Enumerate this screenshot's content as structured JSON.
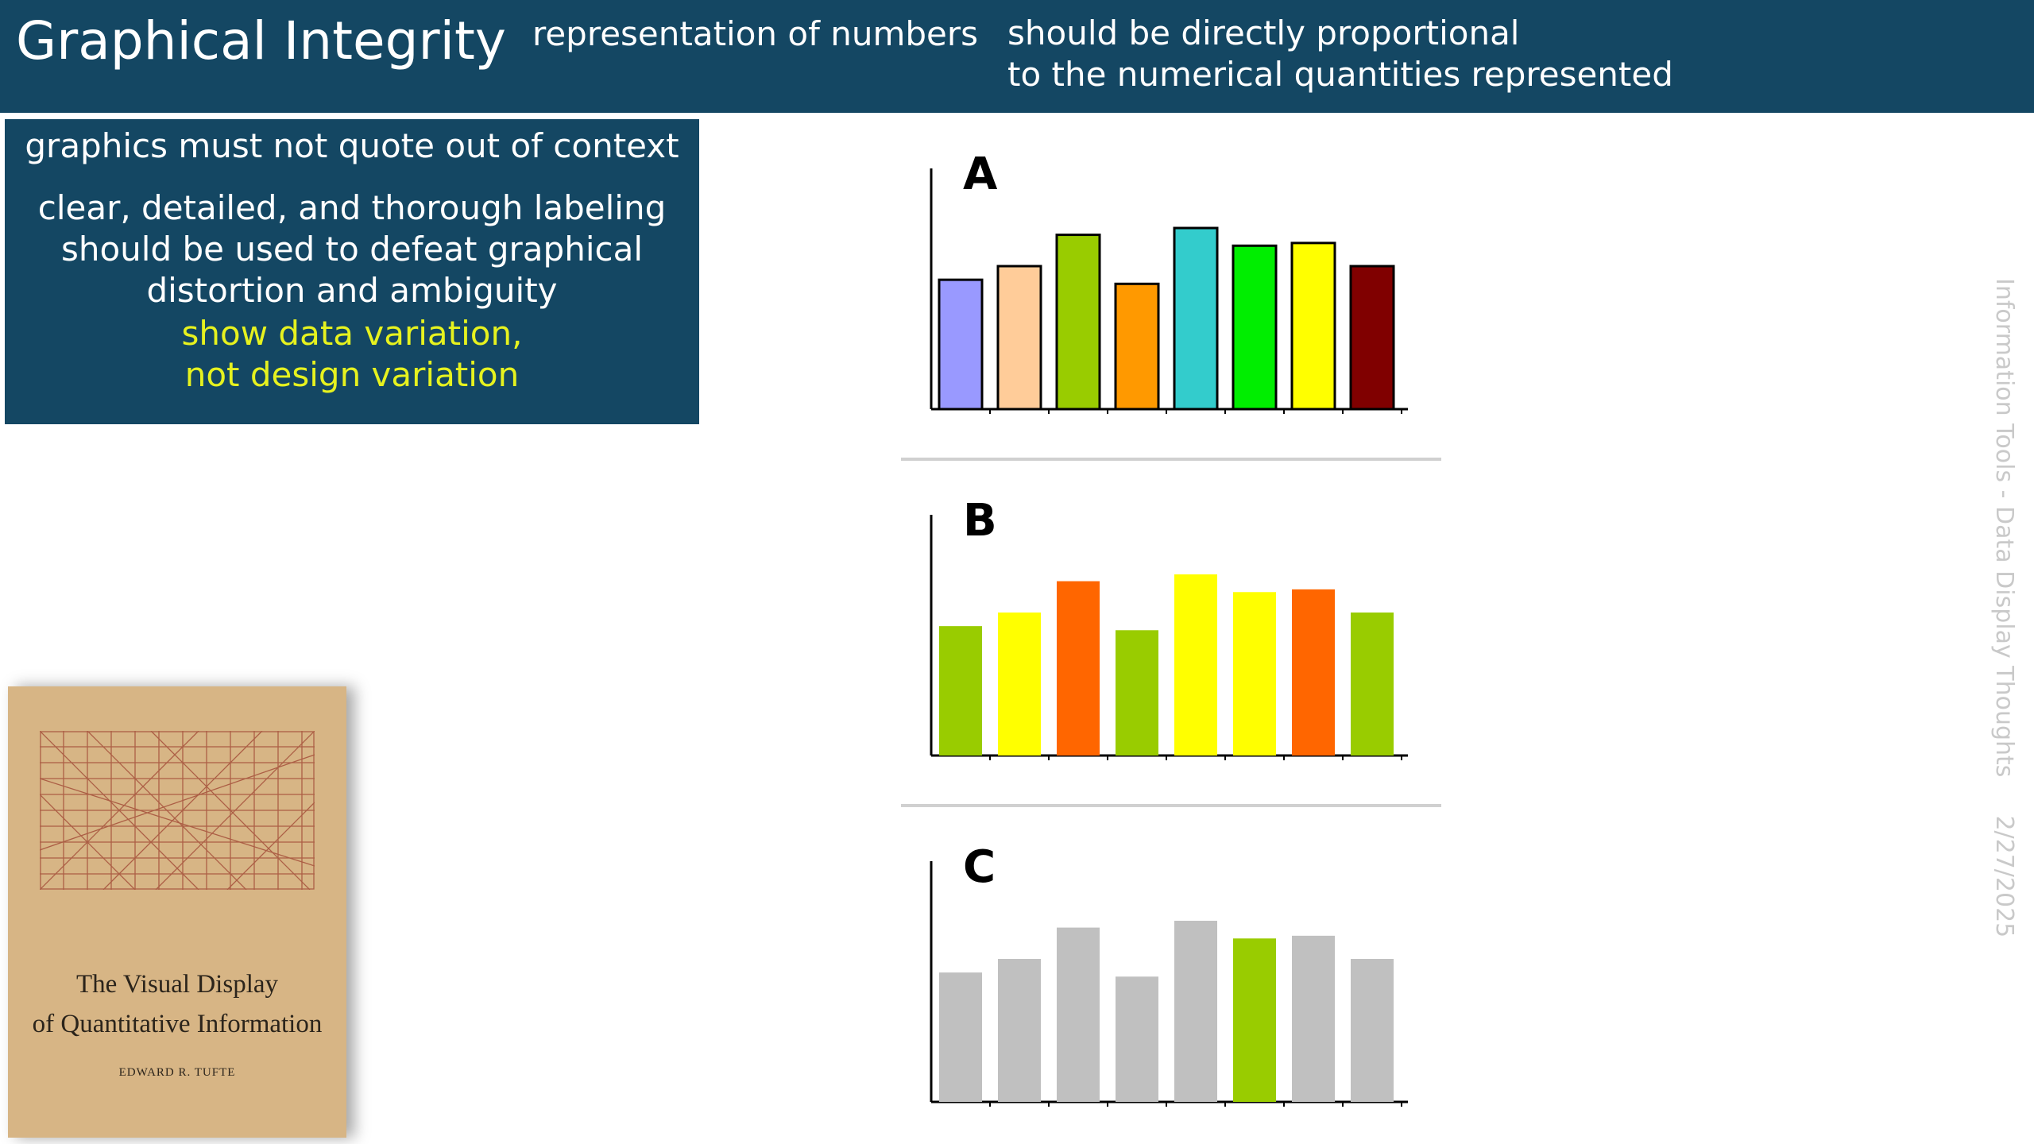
{
  "header": {
    "title": "Graphical Integrity",
    "subtitle_left": "representation of numbers",
    "subtitle_right_lines": [
      "should be directly proportional",
      "to the numerical quantities represented"
    ]
  },
  "principles": {
    "item1": "graphics must not quote out of context",
    "item2_lines": [
      "clear, detailed, and thorough labeling",
      "should be used to defeat graphical",
      "distortion and ambiguity"
    ],
    "item3_lines": [
      "show data variation,",
      "not design variation"
    ],
    "highlight_color": "#e6f21f"
  },
  "book": {
    "title_lines": [
      "The Visual Display",
      "of Quantitative Information"
    ],
    "author": "EDWARD R. TUFTE"
  },
  "sidebar": {
    "footer_text": "Information Tools - Data Display Thoughts",
    "date": "2/27/2025"
  },
  "chart_data": [
    {
      "type": "bar",
      "title": "A",
      "values": [
        95,
        105,
        128,
        92,
        133,
        120,
        122,
        105
      ],
      "ylim": [
        0,
        140
      ],
      "bar_colors": [
        "#9999ff",
        "#ffcc99",
        "#99cc00",
        "#ff9900",
        "#33cccc",
        "#00ee00",
        "#ffff00",
        "#800000"
      ],
      "bar_outline": true
    },
    {
      "type": "bar",
      "title": "B",
      "values": [
        95,
        105,
        128,
        92,
        133,
        120,
        122,
        105
      ],
      "ylim": [
        0,
        140
      ],
      "bar_colors": [
        "#99cc00",
        "#ffff00",
        "#ff6600",
        "#99cc00",
        "#ffff00",
        "#ffff00",
        "#ff6600",
        "#99cc00"
      ],
      "bar_outline": false
    },
    {
      "type": "bar",
      "title": "C",
      "values": [
        95,
        105,
        128,
        92,
        133,
        120,
        122,
        105
      ],
      "ylim": [
        0,
        140
      ],
      "bar_colors": [
        "#c0c0c0",
        "#c0c0c0",
        "#c0c0c0",
        "#c0c0c0",
        "#c0c0c0",
        "#99cc00",
        "#c0c0c0",
        "#c0c0c0"
      ],
      "bar_outline": false
    }
  ]
}
